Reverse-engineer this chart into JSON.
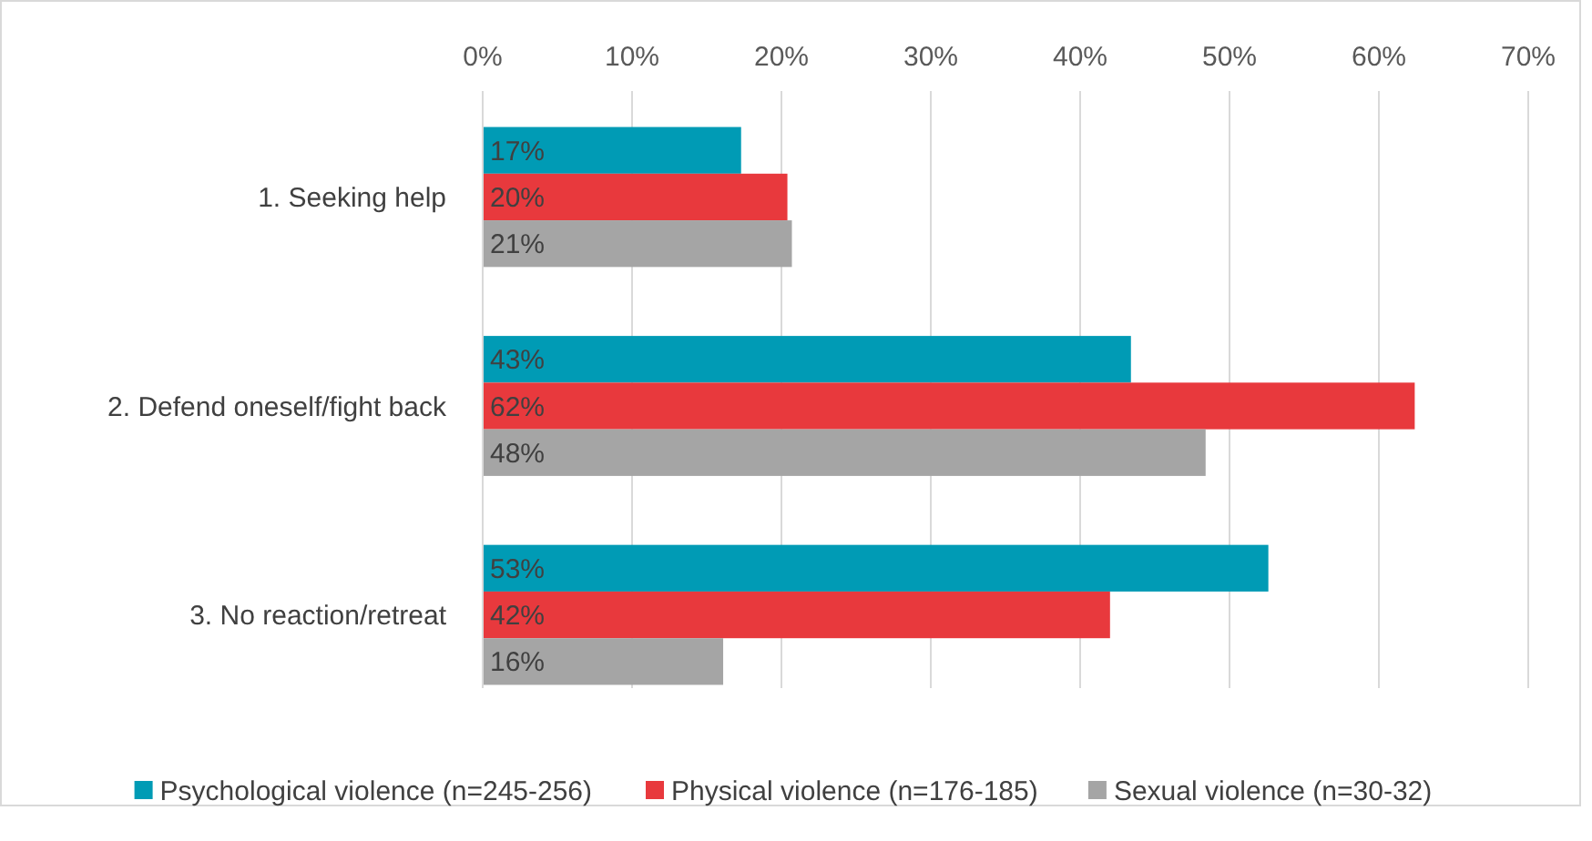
{
  "chart_data": {
    "type": "bar",
    "orientation": "horizontal",
    "categories": [
      "1. Seeking help",
      "2. Defend oneself/fight back",
      "3. No reaction/retreat"
    ],
    "series": [
      {
        "name": "Psychological violence (n=245-256)",
        "color": "#009bb5",
        "values": [
          17.3,
          43.4,
          52.6
        ],
        "value_labels": [
          "17%",
          "43%",
          "53%"
        ]
      },
      {
        "name": "Physical violence (n=176-185)",
        "color": "#e8393d",
        "values": [
          20.4,
          62.4,
          42
        ],
        "value_labels": [
          "20%",
          "62%",
          "42%"
        ]
      },
      {
        "name": "Sexual violence (n=30-32)",
        "color": "#a5a5a5",
        "values": [
          20.7,
          48.4,
          16.1
        ],
        "value_labels": [
          "21%",
          "48%",
          "16%"
        ]
      }
    ],
    "xlim": [
      0,
      70
    ],
    "xticks": [
      {
        "value": 0,
        "label": "0%"
      },
      {
        "value": 10,
        "label": "10%"
      },
      {
        "value": 20,
        "label": "20%"
      },
      {
        "value": 30,
        "label": "30%"
      },
      {
        "value": 40,
        "label": "40%"
      },
      {
        "value": 50,
        "label": "50%"
      },
      {
        "value": 60,
        "label": "60%"
      },
      {
        "value": 70,
        "label": "70%"
      }
    ],
    "grid": true,
    "legend": "bottom"
  }
}
